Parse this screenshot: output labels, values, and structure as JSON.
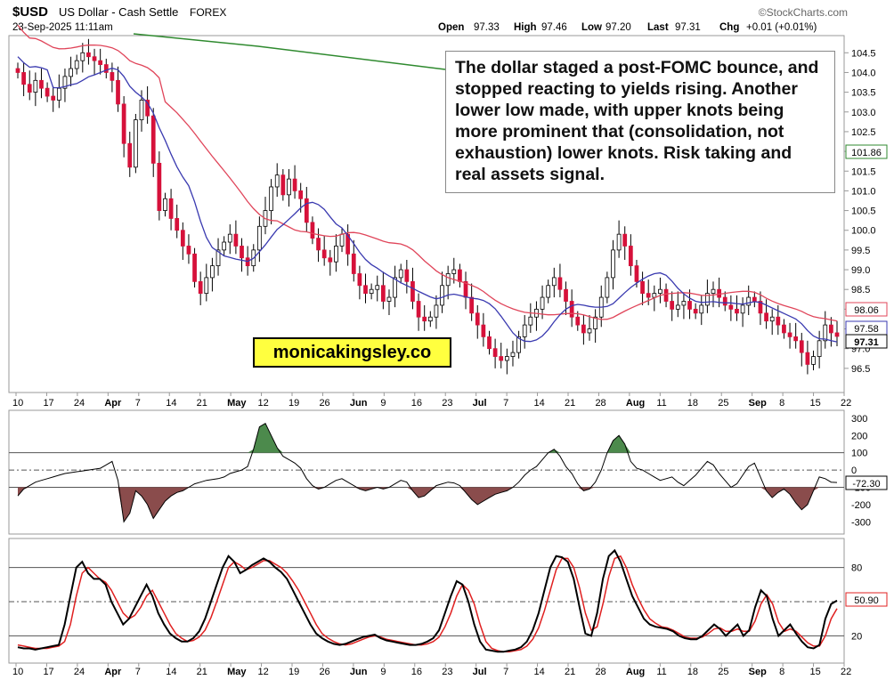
{
  "header": {
    "symbol": "$USD",
    "name": "US Dollar - Cash Settle",
    "exchange": "FOREX",
    "watermark": "©StockCharts.com",
    "date": "23-Sep-2025 11:11am",
    "quote": {
      "open_label": "Open",
      "open": "97.33",
      "high_label": "High",
      "high": "97.46",
      "low_label": "Low",
      "low": "97.20",
      "last_label": "Last",
      "last": "97.31",
      "chg_label": "Chg",
      "chg": "+0.01 (+0.01%)"
    }
  },
  "annotation": "The dollar staged a post-FOMC bounce, and stopped reacting to yields rising. Another lower low made, with upper knots being more prominent that (consolidation, not exhaustion) lower knots. Risk taking and real assets signal.",
  "brand_label": "monicakingsley.co",
  "colors": {
    "up": "#ffffff",
    "down": "#d6113a",
    "ma20": "#3a3ab0",
    "ma50": "#e0455a",
    "ma200": "#2f8a2f",
    "cci_pos": "#4c8a4c",
    "cci_neg": "#8a4c4c",
    "stoch_k": "#000000",
    "stoch_d": "#e02020"
  },
  "chart_data": [
    {
      "type": "candlestick",
      "title": "$USD US Dollar - Cash Settle FOREX",
      "ylim": [
        96.0,
        104.8
      ],
      "y_ticks": [
        "104.5",
        "104.0",
        "103.5",
        "103.0",
        "102.5",
        "102.0",
        "101.5",
        "101.0",
        "100.5",
        "100.0",
        "99.5",
        "99.0",
        "98.5",
        "98.0",
        "97.5",
        "97.0",
        "96.5"
      ],
      "x_tick_labels": [
        "10",
        "17",
        "24",
        "Apr",
        "7",
        "14",
        "21",
        "May",
        "12",
        "19",
        "26",
        "Jun",
        "9",
        "16",
        "23",
        "Jul",
        "7",
        "14",
        "21",
        "28",
        "Aug",
        "11",
        "18",
        "25",
        "Sep",
        "8",
        "15",
        "22"
      ],
      "value_tags": {
        "ma200": "101.86",
        "ma50": "98.06",
        "ma20": "97.58",
        "last": "97.31"
      },
      "close": [
        104.0,
        103.7,
        103.5,
        103.8,
        103.6,
        103.4,
        103.3,
        103.6,
        103.9,
        104.1,
        104.3,
        104.5,
        104.4,
        104.3,
        104.2,
        104.0,
        103.8,
        103.2,
        102.2,
        101.6,
        102.8,
        103.3,
        102.9,
        101.7,
        100.5,
        100.8,
        100.3,
        100.0,
        99.6,
        99.4,
        98.7,
        98.4,
        98.8,
        99.1,
        99.5,
        99.7,
        99.9,
        99.6,
        99.3,
        99.1,
        99.5,
        100.1,
        100.5,
        101.1,
        101.4,
        100.9,
        101.3,
        101.0,
        100.8,
        100.2,
        99.8,
        99.5,
        99.3,
        99.2,
        99.6,
        99.9,
        99.4,
        98.9,
        98.6,
        98.4,
        98.5,
        98.6,
        98.2,
        98.3,
        98.8,
        99.0,
        98.7,
        98.2,
        97.8,
        97.7,
        97.8,
        98.1,
        98.6,
        98.9,
        99.0,
        98.7,
        98.3,
        97.9,
        97.6,
        97.3,
        97.0,
        96.8,
        96.7,
        96.8,
        96.9,
        97.3,
        97.6,
        97.8,
        98.0,
        98.3,
        98.6,
        98.8,
        98.5,
        98.2,
        97.8,
        97.6,
        97.4,
        97.5,
        97.8,
        98.3,
        98.8,
        99.5,
        99.9,
        99.6,
        99.1,
        98.7,
        98.4,
        98.3,
        98.4,
        98.5,
        98.2,
        98.0,
        98.1,
        98.2,
        98.0,
        97.9,
        98.1,
        98.4,
        98.5,
        98.3,
        98.1,
        98.0,
        97.9,
        98.1,
        98.3,
        98.2,
        97.9,
        97.7,
        97.8,
        97.6,
        97.4,
        97.3,
        97.2,
        96.9,
        96.6,
        96.8,
        97.2,
        97.6,
        97.4,
        97.31
      ],
      "cci_ylim": [
        -350,
        320
      ],
      "cci_ticks": [
        "300",
        "200",
        "100",
        "0",
        "-100",
        "-200",
        "-300"
      ],
      "cci_value": "-72.30",
      "cci": [
        -150,
        -110,
        -90,
        -70,
        -60,
        -50,
        -40,
        -30,
        -20,
        -15,
        -10,
        -5,
        0,
        5,
        10,
        30,
        50,
        -60,
        -300,
        -250,
        -120,
        -150,
        -200,
        -280,
        -230,
        -180,
        -150,
        -130,
        -120,
        -100,
        -80,
        -70,
        -60,
        -55,
        -50,
        -40,
        -20,
        -10,
        0,
        20,
        120,
        250,
        270,
        200,
        130,
        80,
        60,
        40,
        10,
        -50,
        -90,
        -110,
        -100,
        -80,
        -60,
        -50,
        -70,
        -90,
        -110,
        -120,
        -110,
        -100,
        -110,
        -100,
        -80,
        -60,
        -70,
        -120,
        -160,
        -150,
        -120,
        -90,
        -80,
        -70,
        -75,
        -90,
        -130,
        -170,
        -200,
        -180,
        -160,
        -140,
        -130,
        -120,
        -100,
        -70,
        -30,
        0,
        20,
        60,
        100,
        120,
        80,
        20,
        -20,
        -80,
        -120,
        -110,
        -70,
        0,
        100,
        170,
        200,
        150,
        50,
        10,
        0,
        -20,
        -40,
        -60,
        -50,
        -40,
        -70,
        -90,
        -60,
        -30,
        10,
        50,
        30,
        -20,
        -60,
        -100,
        -80,
        -30,
        20,
        40,
        -40,
        -120,
        -160,
        -130,
        -110,
        -140,
        -190,
        -230,
        -200,
        -120,
        -40,
        -50,
        -70,
        -72.3
      ],
      "stoch_ylim": [
        0,
        100
      ],
      "stoch_ticks": [
        "80",
        "20"
      ],
      "stoch_value": "50.90",
      "stoch_k": [
        10,
        9,
        9,
        8,
        9,
        10,
        11,
        12,
        30,
        55,
        80,
        85,
        75,
        70,
        70,
        65,
        50,
        40,
        30,
        35,
        45,
        55,
        65,
        55,
        40,
        30,
        22,
        18,
        15,
        15,
        18,
        24,
        35,
        50,
        65,
        80,
        90,
        85,
        75,
        78,
        82,
        85,
        88,
        85,
        80,
        76,
        70,
        60,
        50,
        40,
        30,
        22,
        18,
        15,
        13,
        12,
        13,
        15,
        17,
        19,
        20,
        21,
        18,
        16,
        15,
        14,
        13,
        12,
        12,
        13,
        15,
        18,
        25,
        40,
        55,
        68,
        65,
        50,
        30,
        15,
        8,
        7,
        6,
        6,
        7,
        8,
        10,
        15,
        25,
        40,
        60,
        80,
        90,
        89,
        85,
        70,
        45,
        22,
        20,
        40,
        70,
        90,
        95,
        85,
        70,
        55,
        45,
        35,
        30,
        28,
        27,
        26,
        24,
        20,
        18,
        17,
        17,
        20,
        25,
        30,
        26,
        20,
        25,
        30,
        20,
        25,
        45,
        60,
        55,
        35,
        20,
        25,
        30,
        22,
        15,
        10,
        9,
        12,
        35,
        48,
        50.9
      ],
      "stoch_d": [
        12,
        11,
        10,
        9,
        9,
        9,
        10,
        11,
        15,
        30,
        55,
        75,
        80,
        75,
        70,
        67,
        60,
        50,
        40,
        35,
        38,
        45,
        55,
        60,
        50,
        40,
        30,
        22,
        18,
        15,
        16,
        19,
        25,
        36,
        50,
        65,
        80,
        85,
        82,
        78,
        80,
        83,
        86,
        86,
        83,
        80,
        75,
        68,
        60,
        50,
        40,
        30,
        22,
        18,
        15,
        13,
        12,
        13,
        15,
        17,
        19,
        20,
        19,
        17,
        16,
        15,
        14,
        13,
        12,
        12,
        13,
        15,
        19,
        28,
        40,
        55,
        65,
        60,
        48,
        30,
        15,
        9,
        7,
        6,
        6,
        7,
        8,
        11,
        17,
        27,
        42,
        60,
        78,
        88,
        88,
        80,
        62,
        40,
        25,
        28,
        48,
        72,
        88,
        90,
        80,
        65,
        53,
        43,
        35,
        31,
        28,
        27,
        25,
        22,
        19,
        18,
        18,
        19,
        22,
        26,
        27,
        24,
        24,
        26,
        24,
        24,
        33,
        48,
        56,
        48,
        32,
        24,
        26,
        24,
        19,
        14,
        11,
        11,
        20,
        35,
        44
      ]
    }
  ]
}
